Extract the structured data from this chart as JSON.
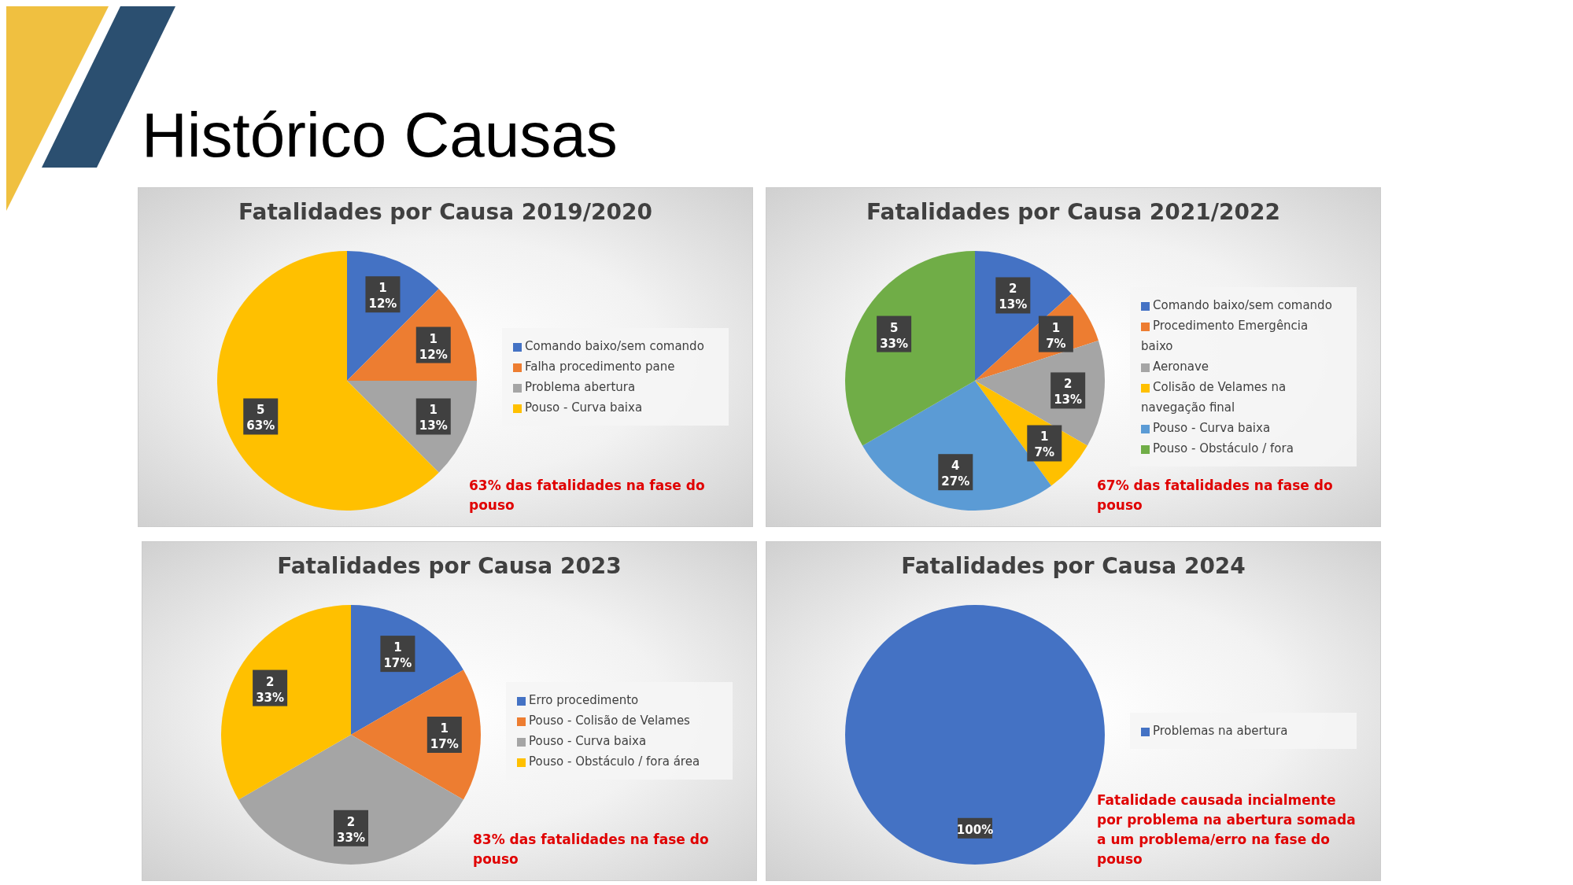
{
  "chart_data": [
    {
      "type": "pie",
      "title": "Fatalidades por Causa 2019/2020",
      "categories": [
        "Comando baixo/sem comando",
        "Falha procedimento pane",
        "Problema abertura",
        "Pouso - Curva baixa"
      ],
      "values": [
        1,
        1,
        1,
        5
      ],
      "colors": [
        "#4472c4",
        "#ed7d31",
        "#a5a5a5",
        "#ffc000"
      ],
      "value_labels": [
        "1\n12%",
        "1\n12%",
        "1\n13%",
        "5\n63%"
      ],
      "legend": "right",
      "annotations": [
        "Histórico Causas",
        "63% das fatalidades na fase do pouso"
      ]
    },
    {
      "type": "pie",
      "title": "Fatalidades por Causa 2021/2022",
      "categories": [
        "Comando baixo/sem comando",
        "Procedimento Emergência baixo",
        "Aeronave",
        "Colisão de Velames na navegação final",
        "Pouso - Curva baixa",
        "Pouso - Obstáculo / fora"
      ],
      "values": [
        2,
        1,
        2,
        1,
        4,
        5
      ],
      "colors": [
        "#4472c4",
        "#ed7d31",
        "#a5a5a5",
        "#ffc000",
        "#5b9bd5",
        "#70ad47"
      ],
      "value_labels": [
        "2\n13%",
        "1\n7%",
        "2\n13%",
        "1\n7%",
        "4\n27%",
        "5\n33%"
      ],
      "legend": "right",
      "annotations": [
        "67% das fatalidades na fase do pouso"
      ]
    },
    {
      "type": "pie",
      "title": "Fatalidades por Causa 2023",
      "categories": [
        "Erro procedimento",
        "Pouso - Colisão de Velames",
        "Pouso - Curva baixa",
        "Pouso - Obstáculo / fora área"
      ],
      "values": [
        1,
        1,
        2,
        2
      ],
      "colors": [
        "#4472c4",
        "#ed7d31",
        "#a5a5a5",
        "#ffc000"
      ],
      "value_labels": [
        "1\n17%",
        "1\n17%",
        "2\n33%",
        "2\n33%"
      ],
      "legend": "right",
      "annotations": [
        "83% das fatalidades na fase do pouso"
      ]
    },
    {
      "type": "pie",
      "title": "Fatalidades por Causa 2024",
      "categories": [
        "Problemas na abertura"
      ],
      "values": [
        100
      ],
      "colors": [
        "#4472c4"
      ],
      "value_labels": [
        "100%"
      ],
      "legend": "right",
      "annotations": [
        "Fatalidade causada incialmente por problema na abertura somada a um problema/erro na fase do pouso"
      ]
    }
  ]
}
